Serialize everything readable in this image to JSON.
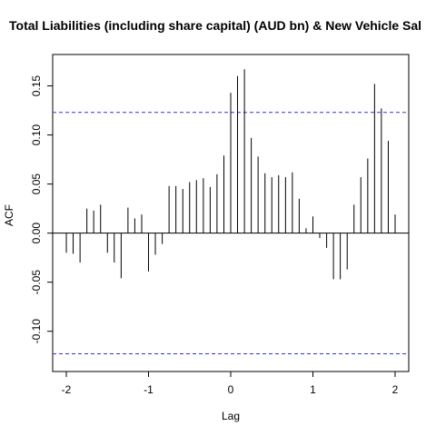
{
  "chart_data": {
    "type": "ccf",
    "title": "Total Liabilities (including share capital) (AUD bn)  & New Vehicle Sal",
    "xlabel": "Lag",
    "ylabel": "ACF",
    "x": [
      -2,
      -1.917,
      -1.833,
      -1.75,
      -1.667,
      -1.583,
      -1.5,
      -1.417,
      -1.333,
      -1.25,
      -1.167,
      -1.083,
      -1,
      -0.917,
      -0.833,
      -0.75,
      -0.667,
      -0.583,
      -0.5,
      -0.417,
      -0.333,
      -0.25,
      -0.167,
      -0.083,
      0,
      0.083,
      0.167,
      0.25,
      0.333,
      0.417,
      0.5,
      0.583,
      0.667,
      0.75,
      0.833,
      0.917,
      1,
      1.083,
      1.167,
      1.25,
      1.333,
      1.417,
      1.5,
      1.583,
      1.667,
      1.75,
      1.833,
      1.917,
      2
    ],
    "values": [
      -0.02,
      -0.021,
      -0.03,
      0.025,
      0.023,
      0.029,
      -0.02,
      -0.03,
      -0.046,
      0.026,
      0.015,
      0.019,
      -0.039,
      -0.022,
      -0.011,
      0.048,
      0.048,
      0.045,
      0.052,
      0.054,
      0.056,
      0.047,
      0.06,
      0.079,
      0.143,
      0.16,
      0.167,
      0.097,
      0.078,
      0.061,
      0.057,
      0.059,
      0.057,
      0.062,
      0.035,
      0.005,
      0.017,
      -0.005,
      -0.015,
      -0.047,
      -0.047,
      -0.037,
      0.029,
      0.057,
      0.076,
      0.152,
      0.127,
      0.094,
      0.019
    ],
    "color": "#000000",
    "conf_limit": 0.123,
    "conf_color": "#3333cc",
    "xlim": [
      -2.166,
      2.166
    ],
    "ylim": [
      -0.141,
      0.182
    ],
    "xticks": [
      -2,
      -1,
      0,
      1,
      2
    ],
    "yticks": [
      {
        "value": -0.1,
        "label": "-0.10"
      },
      {
        "value": -0.05,
        "label": "-0.05"
      },
      {
        "value": 0,
        "label": "0.00"
      },
      {
        "value": 0.05,
        "label": "0.05"
      },
      {
        "value": 0.1,
        "label": "0.10"
      },
      {
        "value": 0.15,
        "label": "0.15"
      }
    ]
  }
}
